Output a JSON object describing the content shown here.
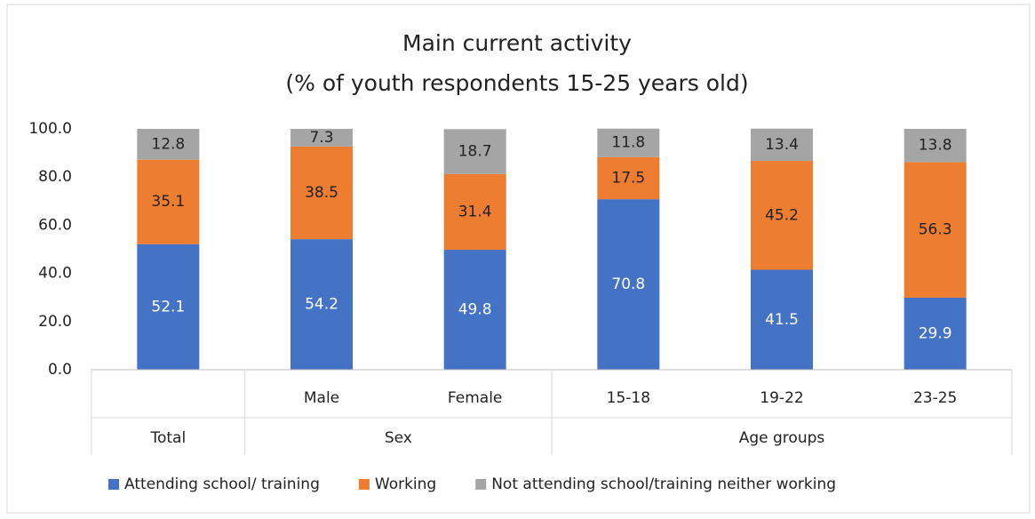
{
  "chart_data": {
    "type": "stacked_bar",
    "title": "Main current activity",
    "subtitle": "(% of youth respondents 15-25 years old)",
    "category_groups": [
      {
        "name": "Total",
        "categories": [
          null
        ]
      },
      {
        "name": "Sex",
        "categories": [
          "Male",
          "Female"
        ]
      },
      {
        "name": "Age groups",
        "categories": [
          "15-18",
          "19-22",
          "23-25"
        ]
      }
    ],
    "series": [
      {
        "name": "Attending school/ training",
        "color": "#4472c4",
        "label_color": "#ffffff",
        "values": [
          52.1,
          54.2,
          49.8,
          70.8,
          41.5,
          29.9
        ]
      },
      {
        "name": "Working",
        "color": "#ed7d31",
        "label_color": "#222222",
        "values": [
          35.1,
          38.5,
          31.4,
          17.5,
          45.2,
          56.3
        ]
      },
      {
        "name": "Not attending school/training neither working",
        "color": "#a5a5a5",
        "label_color": "#222222",
        "values": [
          12.8,
          7.3,
          18.7,
          11.8,
          13.4,
          13.8
        ]
      }
    ],
    "ylim": [
      0,
      100
    ],
    "yticks": [
      {
        "value": 0,
        "label": "0.0"
      },
      {
        "value": 20,
        "label": "20.0"
      },
      {
        "value": 40,
        "label": "40.0"
      },
      {
        "value": 60,
        "label": "60.0"
      },
      {
        "value": 80,
        "label": "80.0"
      },
      {
        "value": 100,
        "label": "100.0"
      }
    ],
    "grid": false,
    "legend": "bottom"
  }
}
